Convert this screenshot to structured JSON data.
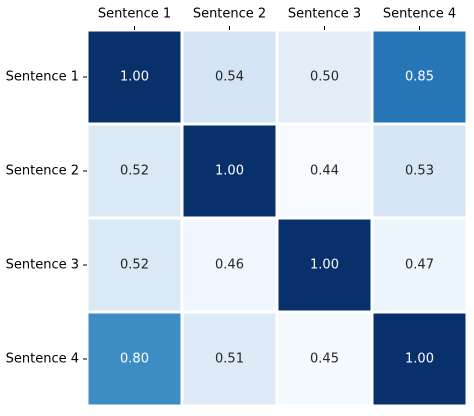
{
  "chart_data": {
    "type": "heatmap",
    "x_categories": [
      "Sentence 1",
      "Sentence 2",
      "Sentence 3",
      "Sentence 4"
    ],
    "y_categories": [
      "Sentence 1",
      "Sentence 2",
      "Sentence 3",
      "Sentence 4"
    ],
    "values": [
      [
        1.0,
        0.54,
        0.5,
        0.85
      ],
      [
        0.52,
        1.0,
        0.44,
        0.53
      ],
      [
        0.52,
        0.46,
        1.0,
        0.47
      ],
      [
        0.8,
        0.51,
        0.45,
        1.0
      ]
    ],
    "value_labels": [
      [
        "1.00",
        "0.54",
        "0.50",
        "0.85"
      ],
      [
        "0.52",
        "1.00",
        "0.44",
        "0.53"
      ],
      [
        "0.52",
        "0.46",
        "1.00",
        "0.47"
      ],
      [
        "0.80",
        "0.51",
        "0.45",
        "1.00"
      ]
    ],
    "colormap": [
      "#f7fbff",
      "#deebf7",
      "#c6dbef",
      "#9ecae1",
      "#6baed6",
      "#4292c6",
      "#2171b5",
      "#08519c",
      "#08306b"
    ]
  }
}
